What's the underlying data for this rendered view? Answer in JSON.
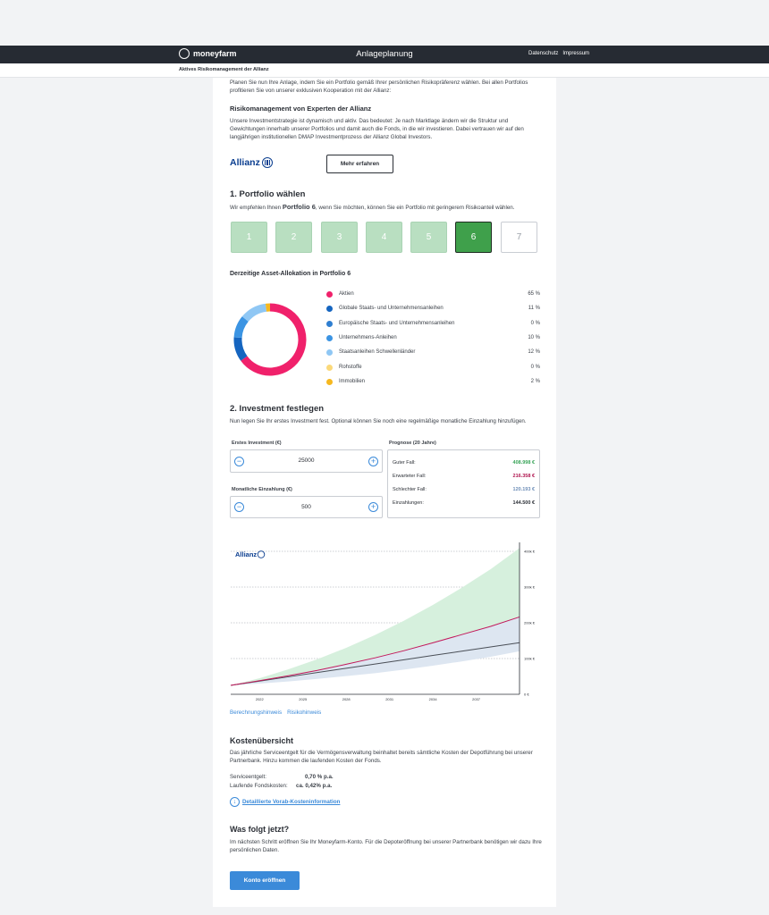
{
  "header": {
    "brand": "moneyfarm",
    "title": "Anlageplanung",
    "links": [
      "Datenschutz",
      "Impressum"
    ]
  },
  "subheader": {
    "text": "Aktives Risikomanagement der Allianz"
  },
  "intro": {
    "text": "Planen Sie nun Ihre Anlage, indem Sie ein Portfolio gemäß Ihrer persönlichen Risikopräferenz wählen. Bei allen Portfolios profitieren Sie von unserer exklusiven Kooperation mit der Allianz:",
    "risk_title": "Risikomanagement von Experten der Allianz",
    "risk_text": "Unsere Investmentstrategie ist dynamisch und aktiv. Das bedeutet: Je nach Marktlage ändern wir die Struktur und Gewichtungen innerhalb unserer Portfolios und damit auch die Fonds, in die wir investieren. Dabei vertrauen wir auf den langjährigen institutionellen DMAP Investmentprozess der Allianz Global Investors.",
    "allianz_logo": "Allianz",
    "more_button": "Mehr erfahren"
  },
  "portfolio": {
    "heading": "1. Portfolio wählen",
    "rec_pre": "Wir empfehlen Ihnen ",
    "rec_name": "Portfolio 6",
    "rec_post": ", wenn Sie möchten, können Sie ein Portfolio mit geringerem Risikoanteil wählen.",
    "options": [
      "1",
      "2",
      "3",
      "4",
      "5",
      "6",
      "7"
    ],
    "selected": "6"
  },
  "allocation": {
    "heading": "Derzeitige Asset-Allokation in Portfolio 6",
    "items": [
      {
        "label": "Aktien",
        "pct": "65 %",
        "value": 65,
        "color": "#f0216b"
      },
      {
        "label": "Globale Staats- und Unternehmensanleihen",
        "pct": "11 %",
        "value": 11,
        "color": "#1565c0"
      },
      {
        "label": "Europäische Staats- und Unternehmensanleihen",
        "pct": "0 %",
        "value": 0,
        "color": "#2f7fd1"
      },
      {
        "label": "Unternehmens-Anleihen",
        "pct": "10 %",
        "value": 10,
        "color": "#3b94e3"
      },
      {
        "label": "Staatsanleihen Schwellenländer",
        "pct": "12 %",
        "value": 12,
        "color": "#8fc7f4"
      },
      {
        "label": "Rohstoffe",
        "pct": "0 %",
        "value": 0,
        "color": "#fbd97a"
      },
      {
        "label": "Immobilien",
        "pct": "2 %",
        "value": 2,
        "color": "#f6b81f"
      }
    ]
  },
  "investment": {
    "heading": "2. Investment festlegen",
    "text": "Nun legen Sie Ihr erstes Investment fest. Optional können Sie noch eine regelmäßige monatliche Einzahlung hinzufügen.",
    "first_label": "Erstes Investment (€)",
    "first_value": "25000",
    "monthly_label": "Monatliche Einzahlung (€)",
    "monthly_value": "500",
    "forecast_label": "Prognose (20 Jahre)",
    "forecast": [
      {
        "label": "Guter Fall:",
        "value": "408.998 €",
        "color": "#3aa55a"
      },
      {
        "label": "Erwarteter Fall:",
        "value": "216.358 €",
        "color": "#b0154f"
      },
      {
        "label": "Schlechter Fall:",
        "value": "120.193 €",
        "color": "#6f8fb8"
      },
      {
        "label": "Einzahlungen:",
        "value": "144.500 €",
        "color": "#2b2f36"
      }
    ]
  },
  "chart_data": {
    "type": "area",
    "logo": "Allianz",
    "x_ticks": [
      "2022",
      "2025",
      "2028",
      "2031",
      "2034",
      "2037"
    ],
    "y_ticks": [
      "0 €",
      "100k €",
      "200k €",
      "300k €",
      "400k €"
    ],
    "ylim": [
      0,
      400000
    ],
    "years": [
      2020,
      2022,
      2024,
      2026,
      2028,
      2030,
      2032,
      2034,
      2036,
      2038,
      2040
    ],
    "series": [
      {
        "name": "Guter Fall",
        "values": [
          25000,
          45000,
          70000,
          98000,
          130000,
          166000,
          206000,
          250000,
          298000,
          350000,
          408998
        ]
      },
      {
        "name": "Erwarteter Fall",
        "values": [
          25000,
          38000,
          52000,
          67000,
          84000,
          102000,
          122000,
          144000,
          167000,
          190000,
          216358
        ]
      },
      {
        "name": "Schlechter Fall",
        "values": [
          25000,
          30000,
          36000,
          43000,
          51000,
          59000,
          69000,
          80000,
          92000,
          105000,
          120193
        ]
      },
      {
        "name": "Einzahlungen",
        "values": [
          25000,
          36950,
          48900,
          60850,
          72800,
          84750,
          96700,
          108650,
          120600,
          132550,
          144500
        ]
      }
    ],
    "colors": {
      "good_band": "#d6f0dd",
      "bad_band": "#dde6f1",
      "expected": "#c2185b",
      "deposits": "#4a4f57"
    }
  },
  "chart_links": [
    "Berechnungshinweis",
    "Risikohinweis"
  ],
  "costs": {
    "heading": "Kostenübersicht",
    "text": "Das jährliche Serviceentgelt für die Vermögensverwaltung beinhaltet bereits sämtliche Kosten der Depotführung bei unserer Partnerbank. Hinzu kommen die laufenden Kosten der Fonds.",
    "service_label": "Serviceentgelt:",
    "service_value": "0,70 % p.a.",
    "fund_label": "Laufende Fondskosten:",
    "fund_value": "ca. 0,42% p.a.",
    "download_link": "Detaillierte Vorab-Kosteninformation"
  },
  "next": {
    "heading": "Was folgt jetzt?",
    "text": "Im nächsten Schritt eröffnen Sie Ihr Moneyfarm-Konto. Für die Depoteröffnung bei unserer Partnerbank benötigen wir dazu Ihre persönlichen Daten.",
    "button": "Konto eröffnen"
  }
}
